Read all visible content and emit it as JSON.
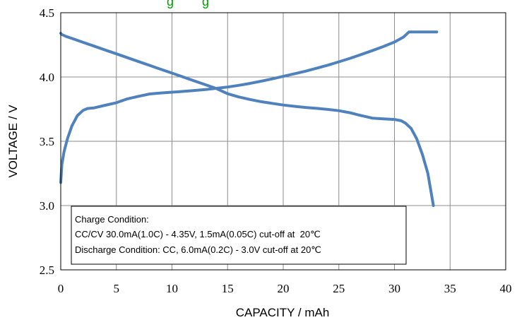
{
  "chart_data": {
    "type": "line",
    "title_partial": "g        g",
    "xlabel": "CAPACITY / mAh",
    "ylabel": "VOLTAGE / V",
    "xlim": [
      0,
      40
    ],
    "ylim": [
      2.5,
      4.5
    ],
    "x_ticks": [
      "0",
      "5",
      "10",
      "15",
      "20",
      "25",
      "30",
      "35",
      "40"
    ],
    "y_ticks": [
      "2.5",
      "3.0",
      "3.5",
      "4.0",
      "4.5"
    ],
    "grid": true,
    "line_color": "#4f81bd",
    "title_color": "#00a000",
    "series": [
      {
        "x": [
          0,
          0.1,
          0.3,
          0.6,
          1.0,
          1.5,
          2.0,
          2.4,
          3.0,
          4.0,
          5.0,
          6.0,
          7.0,
          8.0,
          9.0,
          10.0,
          11.0,
          12.0,
          13.0,
          14.0,
          15.0,
          16.0,
          17.0,
          18.0,
          19.0,
          20.0,
          21.0,
          22.0,
          23.0,
          24.0,
          25.0,
          26.0,
          27.0,
          28.0,
          29.0,
          30.0,
          30.8,
          31.3,
          32.0,
          33.0,
          33.8
        ],
        "y": [
          3.18,
          3.32,
          3.42,
          3.52,
          3.62,
          3.7,
          3.74,
          3.755,
          3.76,
          3.78,
          3.8,
          3.83,
          3.85,
          3.868,
          3.876,
          3.882,
          3.888,
          3.895,
          3.902,
          3.912,
          3.922,
          3.935,
          3.95,
          3.967,
          3.985,
          4.005,
          4.025,
          4.045,
          4.068,
          4.092,
          4.118,
          4.145,
          4.175,
          4.205,
          4.237,
          4.272,
          4.31,
          4.35,
          4.35,
          4.35,
          4.35
        ]
      },
      {
        "x": [
          0,
          0.1,
          0.5,
          1.0,
          2.0,
          3.0,
          4.0,
          5.0,
          6.0,
          7.0,
          8.0,
          9.0,
          10.0,
          11.0,
          12.0,
          13.0,
          14.0,
          15.0,
          16.0,
          17.0,
          18.0,
          19.0,
          20.0,
          21.0,
          22.0,
          23.0,
          24.0,
          25.0,
          26.0,
          27.0,
          28.0,
          29.0,
          30.0,
          30.6,
          31.0,
          31.5,
          32.0,
          32.5,
          33.0,
          33.3,
          33.5
        ],
        "y": [
          4.34,
          4.33,
          4.315,
          4.3,
          4.27,
          4.24,
          4.21,
          4.18,
          4.15,
          4.12,
          4.09,
          4.06,
          4.03,
          4.0,
          3.97,
          3.94,
          3.91,
          3.87,
          3.845,
          3.825,
          3.808,
          3.795,
          3.782,
          3.772,
          3.763,
          3.756,
          3.748,
          3.738,
          3.722,
          3.7,
          3.68,
          3.675,
          3.67,
          3.66,
          3.64,
          3.6,
          3.52,
          3.4,
          3.25,
          3.1,
          3.0
        ]
      }
    ]
  },
  "condition_box": {
    "line1": "Charge Condition:",
    "line2": "CC/CV 30.0mA(1.0C) - 4.35V, 1.5mA(0.05C) cut-off at  20℃",
    "line3": "Discharge Condition: CC, 6.0mA(0.2C) - 3.0V cut-off at 20℃"
  }
}
